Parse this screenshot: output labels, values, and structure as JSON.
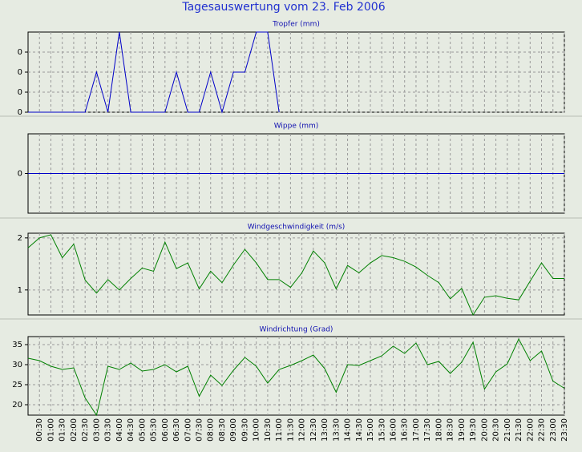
{
  "title": "Tagesauswertung vom 23. Feb 2006",
  "chart_data": [
    {
      "type": "line",
      "title": "Tropfer (mm)",
      "color": "#0000c8",
      "grid": true,
      "ylim": [
        0,
        0.4
      ],
      "yticks": [
        0,
        {
          "value": 0.1,
          "label": "0"
        },
        {
          "value": 0.2,
          "label": "0"
        },
        {
          "value": 0.3,
          "label": "0"
        }
      ],
      "values": [
        0,
        0,
        0,
        0,
        0,
        0,
        0.2,
        0,
        0.4,
        0,
        0,
        0,
        0,
        0.2,
        0,
        0,
        0.2,
        0,
        0.2,
        0.2,
        0.4,
        0.4,
        0,
        null,
        null,
        null,
        null,
        null,
        null,
        null,
        null,
        null,
        null,
        null,
        null,
        null,
        null,
        null,
        null,
        null,
        null,
        null,
        null,
        null,
        null,
        null,
        null,
        null
      ]
    },
    {
      "type": "line",
      "title": "Wippe (mm)",
      "color": "#0000c8",
      "grid": true,
      "ylim": [
        -1,
        1
      ],
      "yticks": [
        0
      ],
      "values": [
        0,
        0,
        0,
        0,
        0,
        0,
        0,
        0,
        0,
        0,
        0,
        0,
        0,
        0,
        0,
        0,
        0,
        0,
        0,
        0,
        0,
        0,
        0,
        0,
        0,
        0,
        0,
        0,
        0,
        0,
        0,
        0,
        0,
        0,
        0,
        0,
        0,
        0,
        0,
        0,
        0,
        0,
        0,
        0,
        0,
        0,
        0,
        0
      ]
    },
    {
      "type": "line",
      "title": "Windgeschwindigkeit (m/s)",
      "color": "#008000",
      "grid": true,
      "ylim": [
        0.52,
        2.09
      ],
      "yticks": [
        1,
        2
      ],
      "values": [
        1.81,
        2.0,
        2.06,
        1.62,
        1.88,
        1.19,
        0.94,
        1.2,
        1.0,
        1.22,
        1.42,
        1.36,
        1.92,
        1.41,
        1.52,
        1.02,
        1.36,
        1.14,
        1.48,
        1.78,
        1.52,
        1.2,
        1.2,
        1.05,
        1.33,
        1.75,
        1.52,
        1.02,
        1.47,
        1.33,
        1.52,
        1.66,
        1.62,
        1.55,
        1.44,
        1.28,
        1.14,
        0.83,
        1.03,
        0.52,
        0.86,
        0.89,
        0.84,
        0.81,
        1.17,
        1.52,
        1.22,
        1.22
      ]
    },
    {
      "type": "line",
      "title": "Windrichtung (Grad)",
      "color": "#008000",
      "grid": true,
      "ylim": [
        17.4,
        37.0
      ],
      "yticks": [
        20,
        25,
        30,
        35
      ],
      "categories": [
        null,
        "00:30",
        "01:00",
        "01:30",
        "02:00",
        "02:30",
        "03:00",
        "03:30",
        "04:00",
        "04:30",
        "05:00",
        "05:30",
        "06:00",
        "06:30",
        "07:00",
        "07:30",
        "08:00",
        "08:30",
        "09:00",
        "09:30",
        "10:00",
        "10:30",
        "11:00",
        "11:30",
        "12:00",
        "12:30",
        "13:00",
        "13:30",
        "14:00",
        "14:30",
        "15:00",
        "15:30",
        "16:00",
        "16:30",
        "17:00",
        "17:30",
        "18:00",
        "18:30",
        "19:00",
        "19:30",
        "20:00",
        "20:30",
        "21:00",
        "21:30",
        "22:00",
        "22:30",
        "23:00",
        "23:30"
      ],
      "values": [
        31.6,
        31,
        29.6,
        28.8,
        29.2,
        21.7,
        17.4,
        29.6,
        28.8,
        30.4,
        28.4,
        28.8,
        30,
        28.2,
        29.6,
        22.1,
        27.4,
        24.8,
        28.6,
        31.8,
        29.6,
        25.4,
        28.8,
        29.8,
        31,
        32.4,
        29,
        23.1,
        30,
        29.8,
        31,
        32.2,
        34.6,
        32.8,
        35.4,
        30,
        30.8,
        27.8,
        30.6,
        35.6,
        23.9,
        28.2,
        30.2,
        36.4,
        31,
        33.4,
        25.9,
        24.1
      ]
    }
  ]
}
